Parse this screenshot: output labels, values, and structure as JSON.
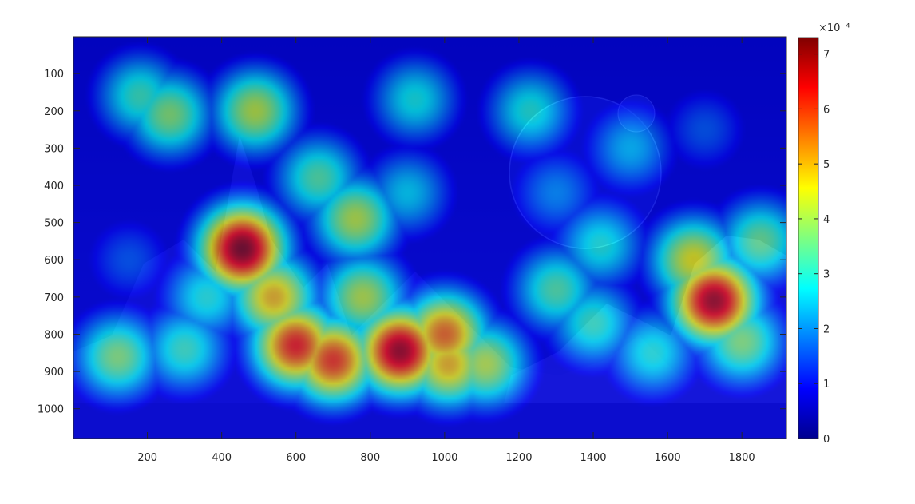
{
  "chart_data": {
    "type": "heatmap",
    "title": "",
    "xlabel": "",
    "ylabel": "",
    "xlim": [
      1,
      1920
    ],
    "ylim": [
      1,
      1080
    ],
    "y_reversed": true,
    "x_ticks": [
      200,
      400,
      600,
      800,
      1000,
      1200,
      1400,
      1600,
      1800
    ],
    "y_ticks": [
      100,
      200,
      300,
      400,
      500,
      600,
      700,
      800,
      900,
      1000
    ],
    "colormap": "jet",
    "colorbar": {
      "range": [
        0,
        0.00073
      ],
      "tick_values": [
        0,
        1,
        2,
        3,
        4,
        5,
        6,
        7
      ],
      "tick_labels": [
        "0",
        "1",
        "2",
        "3",
        "4",
        "5",
        "6",
        "7"
      ],
      "exponent_label": "×10⁻⁴"
    },
    "background": "fantasy landscape: mountains, planets and starry sky",
    "hotspots": [
      {
        "x": 455,
        "y": 570,
        "value": 7.3
      },
      {
        "x": 1725,
        "y": 710,
        "value": 7.0
      },
      {
        "x": 880,
        "y": 845,
        "value": 7.0
      },
      {
        "x": 600,
        "y": 830,
        "value": 6.2
      },
      {
        "x": 700,
        "y": 870,
        "value": 6.0
      },
      {
        "x": 1000,
        "y": 800,
        "value": 5.6
      },
      {
        "x": 1010,
        "y": 880,
        "value": 5.0
      },
      {
        "x": 540,
        "y": 700,
        "value": 5.0
      },
      {
        "x": 1670,
        "y": 600,
        "value": 4.6
      },
      {
        "x": 760,
        "y": 490,
        "value": 4.2
      },
      {
        "x": 490,
        "y": 200,
        "value": 4.2
      },
      {
        "x": 1110,
        "y": 880,
        "value": 4.2
      },
      {
        "x": 780,
        "y": 700,
        "value": 4.2
      },
      {
        "x": 260,
        "y": 210,
        "value": 3.8
      },
      {
        "x": 120,
        "y": 860,
        "value": 3.8
      },
      {
        "x": 1800,
        "y": 820,
        "value": 3.8
      },
      {
        "x": 1850,
        "y": 550,
        "value": 3.6
      },
      {
        "x": 1300,
        "y": 680,
        "value": 3.4
      },
      {
        "x": 660,
        "y": 380,
        "value": 3.4
      },
      {
        "x": 1400,
        "y": 770,
        "value": 3.2
      },
      {
        "x": 300,
        "y": 840,
        "value": 3.2
      },
      {
        "x": 180,
        "y": 160,
        "value": 3.2
      },
      {
        "x": 1230,
        "y": 200,
        "value": 3.0
      },
      {
        "x": 1420,
        "y": 560,
        "value": 3.0
      },
      {
        "x": 920,
        "y": 170,
        "value": 2.9
      },
      {
        "x": 1560,
        "y": 850,
        "value": 3.0
      },
      {
        "x": 1500,
        "y": 300,
        "value": 2.4
      },
      {
        "x": 900,
        "y": 420,
        "value": 2.6
      },
      {
        "x": 1700,
        "y": 250,
        "value": 1.6
      },
      {
        "x": 1300,
        "y": 420,
        "value": 2.0
      },
      {
        "x": 150,
        "y": 600,
        "value": 1.6
      },
      {
        "x": 360,
        "y": 700,
        "value": 3.0
      }
    ]
  }
}
